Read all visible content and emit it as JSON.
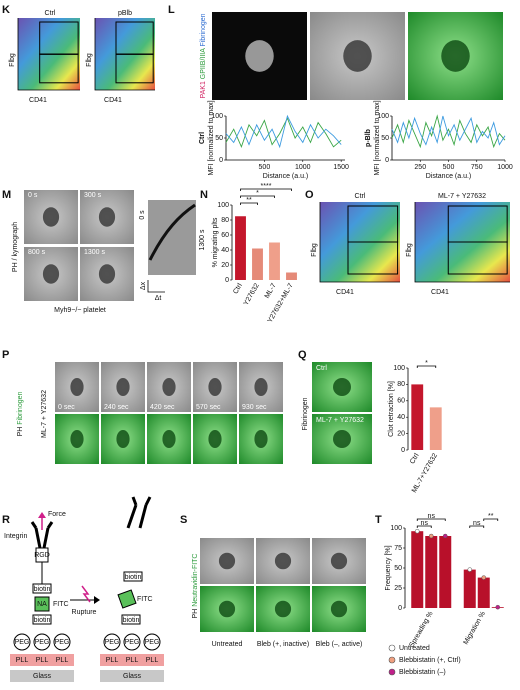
{
  "panels": {
    "K": {
      "letter": "K",
      "left": "Ctrl",
      "right": "pBlb",
      "y_label": "Flbg",
      "x_label": "CD41"
    },
    "L": {
      "letter": "L",
      "channels": [
        "PAK1",
        "GPIIB/IIIA",
        "Fibrinogen"
      ]
    },
    "M": {
      "letter": "M",
      "side_label": "PH / kymograph",
      "times": [
        "0 s",
        "300 s",
        "800 s",
        "1300 s"
      ],
      "caption": "Myh9−/− platelet",
      "kymo_top": "0 s",
      "kymo_end": "1300 s",
      "dx": "Δx",
      "dt": "Δt"
    },
    "N": {
      "letter": "N"
    },
    "O": {
      "letter": "O",
      "left": "Ctrl",
      "right": "ML-7 + Y27632",
      "y_label": "Flbg",
      "x_label": "CD41"
    },
    "P": {
      "letter": "P",
      "ph": "PH",
      "channel": "Fibrinogen",
      "condition": "ML-7 + Y27632",
      "times": [
        "0 sec",
        "240 sec",
        "420 sec",
        "570 sec",
        "930 sec"
      ]
    },
    "Q": {
      "letter": "Q",
      "top": "Ctrl",
      "bottom": "ML-7 + Y27632",
      "channel": "Fibrinogen"
    },
    "R": {
      "letter": "R",
      "integrin": "Integrin",
      "force": "Force",
      "rgd": "RGD",
      "biotin": "biotin",
      "na": "NA",
      "fitc": "FITC",
      "peg": "PEG",
      "pll": "PLL",
      "glass": "Glass",
      "rupture": "Rupture"
    },
    "S": {
      "letter": "S",
      "ph": "PH",
      "channel": "Neutravidin-FITC",
      "conditions": [
        "Untreated",
        "Bleb (+, inactive)",
        "Bleb (–, active)"
      ]
    },
    "T": {
      "letter": "T"
    }
  },
  "chart_data": [
    {
      "type": "bar",
      "ylabel": "% migrating plts",
      "categories": [
        "Ctrl",
        "Y27632",
        "ML-7",
        "Y27632+ML-7"
      ],
      "values": [
        85,
        42,
        50,
        10
      ],
      "colors": [
        "#c4172c",
        "#e58a78",
        "#ef9f8a",
        "#e58a78"
      ],
      "ylim": [
        0,
        100
      ],
      "yticks": [
        0,
        20,
        40,
        60,
        80,
        100
      ],
      "annotations": [
        "**",
        "*",
        "****"
      ]
    },
    {
      "type": "bar",
      "ylabel": "Clot retraction [%]",
      "categories": [
        "Ctrl",
        "ML-7+Y27632"
      ],
      "values": [
        80,
        52
      ],
      "colors": [
        "#c4172c",
        "#ef9f8a"
      ],
      "ylim": [
        0,
        100
      ],
      "yticks": [
        0,
        20,
        40,
        60,
        80,
        100
      ],
      "annotations": [
        "*"
      ]
    },
    {
      "type": "grouped_bar",
      "ylabel": "Frequency [%]",
      "categories": [
        "Spreading %",
        "Migration %"
      ],
      "bar_color": "#b8102a",
      "series": [
        {
          "name": "Untreated",
          "color": "#ffffff",
          "values": [
            96,
            48
          ]
        },
        {
          "name": "Blebbistatin (+, Ctrl)",
          "color": "#f0a080",
          "values": [
            90,
            38
          ]
        },
        {
          "name": "Blebbistatin (–)",
          "color": "#c0208a",
          "values": [
            90,
            1
          ]
        }
      ],
      "ylim": [
        0,
        100
      ],
      "yticks": [
        0,
        25,
        50,
        75,
        100
      ],
      "annotations": [
        "ns",
        "ns",
        "ns",
        "**"
      ]
    },
    {
      "type": "line",
      "title": "Ctrl",
      "ylabel": "MFI [normalized to max]",
      "xlabel": "Distance (a.u.)",
      "x": [
        0,
        100,
        200,
        300,
        400,
        500,
        600,
        700,
        800,
        900,
        1000,
        1100,
        1200,
        1300,
        1400,
        1500
      ],
      "series": [
        {
          "color": "#3aa646",
          "values": [
            40,
            70,
            30,
            80,
            55,
            90,
            35,
            60,
            95,
            50,
            75,
            40,
            85,
            60,
            30,
            45
          ]
        },
        {
          "color": "#3d9be0",
          "values": [
            60,
            40,
            75,
            35,
            80,
            45,
            70,
            30,
            100,
            65,
            40,
            80,
            50,
            70,
            55,
            35
          ]
        }
      ],
      "xlim": [
        0,
        1550
      ],
      "xticks": [
        500,
        1000,
        1500
      ],
      "ylim": [
        0,
        100
      ],
      "yticks": [
        0,
        50,
        100
      ]
    },
    {
      "type": "line",
      "title": "p-Blb",
      "ylabel": "MFI [normalized to max]",
      "xlabel": "Distance (a.u.)",
      "x": [
        0,
        50,
        100,
        150,
        200,
        250,
        300,
        350,
        400,
        450,
        500,
        550,
        600,
        650,
        700,
        750,
        800,
        850,
        900,
        950,
        1000
      ],
      "series": [
        {
          "color": "#3aa646",
          "values": [
            50,
            80,
            40,
            90,
            60,
            30,
            85,
            55,
            100,
            45,
            70,
            35,
            90,
            60,
            40,
            80,
            55,
            75,
            30,
            60,
            45
          ]
        },
        {
          "color": "#3d9be0",
          "values": [
            70,
            40,
            85,
            50,
            95,
            60,
            35,
            75,
            40,
            100,
            55,
            80,
            45,
            70,
            95,
            40,
            65,
            50,
            85,
            35,
            55
          ]
        }
      ],
      "xlim": [
        0,
        1000
      ],
      "xticks": [
        250,
        500,
        750,
        1000
      ],
      "ylim": [
        0,
        100
      ],
      "yticks": [
        0,
        50,
        100
      ]
    }
  ]
}
